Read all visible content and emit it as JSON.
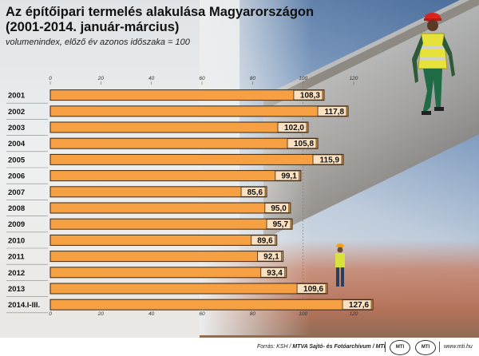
{
  "title_line1": "Az építőipari termelés alakulása Magyarországon",
  "title_line2": "(2001-2014. január-március)",
  "subtitle": "volumenindex, előző év azonos időszaka = 100",
  "footer": {
    "source_prefix": "Forrás: KSH / ",
    "source_bold": "MTVA Sajtó- és Fotóarchívum / MTI",
    "logo1": "MTI",
    "logo2": "MTI",
    "site": "www.mti.hu"
  },
  "colors": {
    "bar": "#f5a042",
    "bar_outline": "#3b2a18"
  },
  "chart_data": {
    "type": "bar",
    "orientation": "horizontal",
    "categories": [
      "2001",
      "2002",
      "2003",
      "2004",
      "2005",
      "2006",
      "2007",
      "2008",
      "2009",
      "2010",
      "2011",
      "2012",
      "2013",
      "2014.I-III."
    ],
    "values": [
      108.3,
      117.8,
      102.0,
      105.8,
      115.9,
      99.1,
      85.6,
      95.0,
      95.7,
      89.6,
      92.1,
      93.4,
      109.6,
      127.6
    ],
    "value_labels": [
      "108,3",
      "117,8",
      "102,0",
      "105,8",
      "115,9",
      "99,1",
      "85,6",
      "95,0",
      "95,7",
      "89,6",
      "92,1",
      "93,4",
      "109,6",
      "127,6"
    ],
    "x_ticks": [
      0,
      20,
      40,
      60,
      80,
      100,
      120
    ],
    "xlim": [
      0,
      120
    ],
    "title": "Az építőipari termelés alakulása Magyarországon (2001-2014. január-március)",
    "subtitle": "volumenindex, előző év azonos időszaka = 100",
    "grid": false
  }
}
